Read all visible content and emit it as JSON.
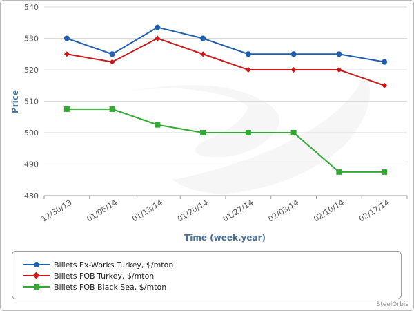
{
  "chart_data": {
    "type": "line",
    "xlabel": "Time (week.year)",
    "ylabel": "Price",
    "ylim": [
      480,
      540
    ],
    "yticks": [
      "480",
      "490",
      "500",
      "510",
      "520",
      "530",
      "540"
    ],
    "categories": [
      "12/30/13",
      "01/06/14",
      "01/13/14",
      "01/20/14",
      "01/27/14",
      "02/03/14",
      "02/10/14",
      "02/17/14"
    ],
    "grid": true,
    "legend_position": "bottom",
    "series": [
      {
        "name": "Billets Ex-Works Turkey, $/mton",
        "color": "#1f5fb0",
        "marker": "circle",
        "values": [
          530,
          525,
          533.5,
          530,
          525,
          525,
          525,
          522.5
        ]
      },
      {
        "name": "Billets FOB Turkey, $/mton",
        "color": "#cc1a1a",
        "marker": "diamond",
        "values": [
          525,
          522.5,
          530,
          525,
          520,
          520,
          520,
          515
        ]
      },
      {
        "name": "Billets FOB Black Sea, $/mton",
        "color": "#33aa33",
        "marker": "square",
        "values": [
          507.5,
          507.5,
          502.5,
          500,
          500,
          500,
          487.5,
          487.5
        ]
      }
    ]
  },
  "credit": "SteelOrbis"
}
